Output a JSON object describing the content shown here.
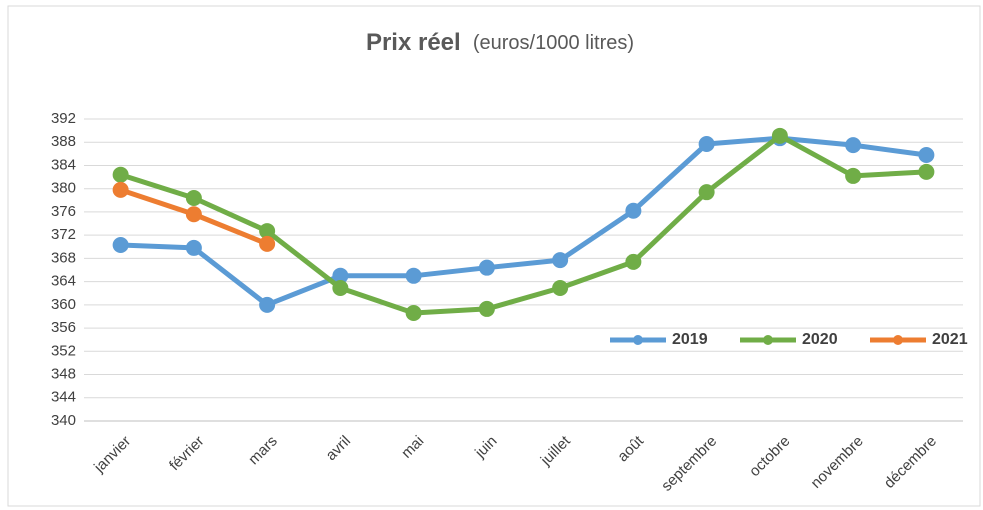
{
  "chart_data": {
    "type": "line",
    "title": "Prix réel",
    "subtitle": "(euros/1000 litres)",
    "categories": [
      "janvier",
      "février",
      "mars",
      "avril",
      "mai",
      "juin",
      "juillet",
      "août",
      "septembre",
      "octobre",
      "novembre",
      "décembre"
    ],
    "series": [
      {
        "name": "2019",
        "color": "#5b9bd5",
        "values": [
          370.3,
          369.8,
          360.0,
          365.0,
          365.0,
          366.4,
          367.7,
          376.2,
          387.7,
          388.7,
          387.5,
          385.8
        ]
      },
      {
        "name": "2020",
        "color": "#70ad47",
        "values": [
          382.4,
          378.4,
          372.7,
          362.9,
          358.6,
          359.3,
          362.9,
          367.4,
          379.4,
          389.1,
          382.2,
          382.9
        ]
      },
      {
        "name": "2021",
        "color": "#ed7d31",
        "values": [
          379.8,
          375.6,
          370.5,
          null,
          null,
          null,
          null,
          null,
          null,
          null,
          null,
          null
        ]
      }
    ],
    "ylim": [
      340,
      392
    ],
    "yticks": [
      340,
      344,
      348,
      352,
      356,
      360,
      364,
      368,
      372,
      376,
      380,
      384,
      388,
      392
    ],
    "grid": true,
    "legend": "right"
  }
}
